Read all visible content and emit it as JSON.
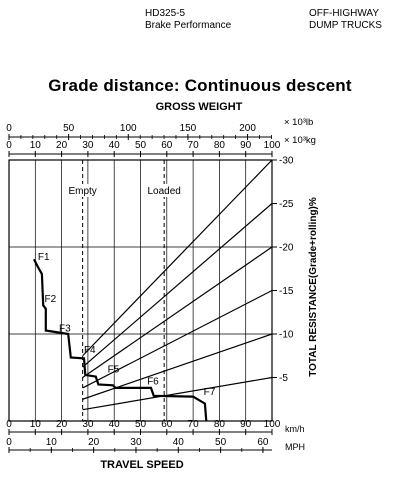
{
  "header": {
    "model": "HD325-5",
    "subtitle": "Brake Performance",
    "category_line1": "OFF-HIGHWAY",
    "category_line2": "DUMP TRUCKS"
  },
  "chart_data": {
    "type": "line",
    "title": "Grade distance: Continuous descent",
    "top_axis_label": "GROSS WEIGHT",
    "lb_axis": {
      "unit": "× 10³lb",
      "ticks": [
        0,
        50,
        100,
        150,
        200
      ],
      "range": [
        0,
        220.5
      ]
    },
    "kg_axis": {
      "unit": "× 10³kg",
      "ticks": [
        0,
        10,
        20,
        30,
        40,
        50,
        60,
        70,
        80,
        90,
        100
      ],
      "range": [
        0,
        100
      ]
    },
    "kmh_axis": {
      "unit": "km/h",
      "ticks": [
        0,
        10,
        20,
        30,
        40,
        50,
        60,
        70,
        80,
        90,
        100
      ],
      "range": [
        0,
        100
      ]
    },
    "mph_axis": {
      "unit": "MPH",
      "ticks": [
        0,
        10,
        20,
        30,
        40,
        50,
        60
      ],
      "range": [
        0,
        62.14
      ]
    },
    "xlabel": "TRAVEL SPEED",
    "ylabel": "TOTAL RESISTANCE(Grade+rolling)%",
    "right_axis": {
      "ticks": [
        5,
        10,
        15,
        20,
        25,
        30
      ],
      "label_ticks": [
        "5",
        "10",
        "15",
        "20",
        "25",
        "30"
      ],
      "range": [
        0,
        30
      ]
    },
    "reference_lines": [
      {
        "label": "Empty",
        "kg": 28
      },
      {
        "label": "Loaded",
        "kg": 59
      }
    ],
    "resistance_lines": [
      {
        "resistance": 30,
        "y_at_empty": 7.5
      },
      {
        "resistance": 25,
        "y_at_empty": 6.2
      },
      {
        "resistance": 20,
        "y_at_empty": 5.0
      },
      {
        "resistance": 15,
        "y_at_empty": 3.8
      },
      {
        "resistance": 10,
        "y_at_empty": 2.5
      },
      {
        "resistance": 5,
        "y_at_empty": 1.3
      }
    ],
    "gear_labels": [
      {
        "name": "F1",
        "kmh": 11,
        "y": 18.5
      },
      {
        "name": "F2",
        "kmh": 13.5,
        "y": 13.7
      },
      {
        "name": "F3",
        "kmh": 19,
        "y": 10.3
      },
      {
        "name": "F4",
        "kmh": 28.5,
        "y": 7.8
      },
      {
        "name": "F5",
        "kmh": 37.5,
        "y": 5.6
      },
      {
        "name": "F6",
        "kmh": 52.5,
        "y": 4.2
      },
      {
        "name": "F7",
        "kmh": 74,
        "y": 3.0
      }
    ],
    "gear_curve": [
      [
        9.5,
        18.6
      ],
      [
        11,
        17.7
      ],
      [
        12.5,
        16.9
      ],
      [
        13,
        13.3
      ],
      [
        14,
        12.9
      ],
      [
        14,
        10.4
      ],
      [
        22.5,
        10.0
      ],
      [
        23.5,
        7.3
      ],
      [
        28.5,
        7.2
      ],
      [
        29,
        5.3
      ],
      [
        33,
        5.1
      ],
      [
        34,
        4.2
      ],
      [
        39.5,
        4.1
      ],
      [
        40.5,
        3.8
      ],
      [
        54,
        3.8
      ],
      [
        55,
        2.9
      ],
      [
        70,
        2.8
      ],
      [
        74.5,
        2.0
      ],
      [
        75,
        0.0
      ]
    ]
  }
}
